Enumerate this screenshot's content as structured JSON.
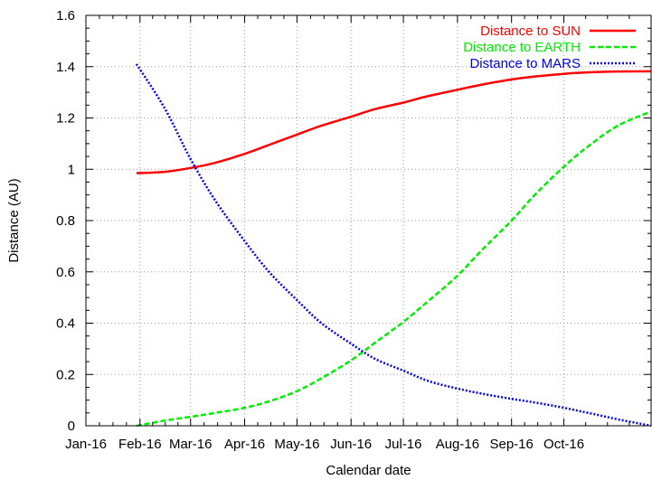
{
  "chart_data": {
    "type": "line",
    "title": "",
    "xlabel": "Calendar date",
    "ylabel": "Distance (AU)",
    "x_type": "date",
    "xlim": [
      "2016-01-01",
      "2016-11-20"
    ],
    "ylim": [
      0,
      1.6
    ],
    "x_ticks": [
      {
        "date": "2016-01-01",
        "label": "Jan-16"
      },
      {
        "date": "2016-02-01",
        "label": "Feb-16"
      },
      {
        "date": "2016-03-01",
        "label": "Mar-16"
      },
      {
        "date": "2016-04-01",
        "label": "Apr-16"
      },
      {
        "date": "2016-05-01",
        "label": "May-16"
      },
      {
        "date": "2016-06-01",
        "label": "Jun-16"
      },
      {
        "date": "2016-07-01",
        "label": "Jul-16"
      },
      {
        "date": "2016-08-01",
        "label": "Aug-16"
      },
      {
        "date": "2016-09-01",
        "label": "Sep-16"
      },
      {
        "date": "2016-10-01",
        "label": "Oct-16"
      }
    ],
    "y_ticks": [
      {
        "value": 0,
        "label": "0"
      },
      {
        "value": 0.2,
        "label": "0.2"
      },
      {
        "value": 0.4,
        "label": "0.4"
      },
      {
        "value": 0.6,
        "label": "0.6"
      },
      {
        "value": 0.8,
        "label": "0.8"
      },
      {
        "value": 1.0,
        "label": "1"
      },
      {
        "value": 1.2,
        "label": "1.2"
      },
      {
        "value": 1.4,
        "label": "1.4"
      },
      {
        "value": 1.6,
        "label": "1.6"
      }
    ],
    "grid": true,
    "legend_position": "top-right",
    "series": [
      {
        "name": "Distance to SUN",
        "color": "#ff0000",
        "dash": "solid",
        "x": [
          "2016-01-30",
          "2016-02-15",
          "2016-03-01",
          "2016-03-15",
          "2016-04-01",
          "2016-04-15",
          "2016-05-01",
          "2016-05-15",
          "2016-06-01",
          "2016-06-15",
          "2016-07-01",
          "2016-07-15",
          "2016-08-01",
          "2016-08-15",
          "2016-09-01",
          "2016-09-15",
          "2016-10-01",
          "2016-10-15",
          "2016-11-01",
          "2016-11-20"
        ],
        "y": [
          0.985,
          0.99,
          1.005,
          1.025,
          1.06,
          1.095,
          1.135,
          1.17,
          1.205,
          1.235,
          1.26,
          1.285,
          1.31,
          1.33,
          1.35,
          1.362,
          1.372,
          1.378,
          1.381,
          1.382
        ]
      },
      {
        "name": "Distance to EARTH",
        "color": "#00ee00",
        "dash": "dashed",
        "x": [
          "2016-01-30",
          "2016-02-15",
          "2016-03-01",
          "2016-03-15",
          "2016-04-01",
          "2016-04-15",
          "2016-05-01",
          "2016-05-15",
          "2016-06-01",
          "2016-06-15",
          "2016-07-01",
          "2016-07-15",
          "2016-08-01",
          "2016-08-15",
          "2016-09-01",
          "2016-09-15",
          "2016-10-01",
          "2016-10-15",
          "2016-11-01",
          "2016-11-20"
        ],
        "y": [
          0.0,
          0.02,
          0.035,
          0.05,
          0.07,
          0.095,
          0.135,
          0.185,
          0.255,
          0.325,
          0.405,
          0.485,
          0.585,
          0.685,
          0.8,
          0.905,
          1.01,
          1.09,
          1.17,
          1.225
        ]
      },
      {
        "name": "Distance to MARS",
        "color": "#0000ee",
        "dash": "dotted",
        "x": [
          "2016-01-30",
          "2016-02-15",
          "2016-03-01",
          "2016-03-15",
          "2016-04-01",
          "2016-04-15",
          "2016-05-01",
          "2016-05-15",
          "2016-06-01",
          "2016-06-15",
          "2016-07-01",
          "2016-07-15",
          "2016-08-01",
          "2016-08-15",
          "2016-09-01",
          "2016-09-15",
          "2016-10-01",
          "2016-10-15",
          "2016-11-01",
          "2016-11-20"
        ],
        "y": [
          1.41,
          1.24,
          1.04,
          0.88,
          0.72,
          0.6,
          0.49,
          0.4,
          0.32,
          0.26,
          0.215,
          0.175,
          0.145,
          0.125,
          0.105,
          0.09,
          0.07,
          0.05,
          0.025,
          0.0
        ]
      }
    ]
  }
}
